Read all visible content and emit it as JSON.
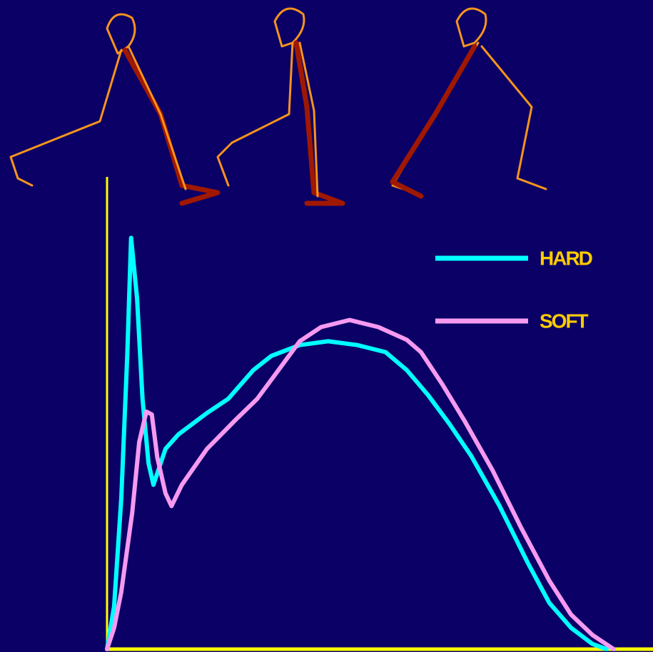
{
  "chart_data": {
    "type": "line",
    "xlim": [
      0,
      100
    ],
    "ylim": [
      0,
      100
    ],
    "series": [
      {
        "name": "HARD",
        "color": "#00ffff",
        "x": [
          0,
          1.3,
          2.6,
          3.7,
          4.4,
          5.5,
          6.5,
          7.6,
          8.5,
          9.4,
          10.7,
          13.1,
          18.3,
          22.2,
          26.8,
          30.1,
          35.3,
          40.5,
          45.8,
          51,
          54.9,
          58.8,
          62.7,
          66.7,
          71.9,
          77.1,
          81,
          85,
          88.9,
          91.5
        ],
        "values": [
          0,
          9.1,
          31.8,
          62.1,
          87.1,
          74.2,
          53,
          39.4,
          34.8,
          37.9,
          42.4,
          45.5,
          50,
          53,
          59.1,
          62.1,
          64.4,
          65.2,
          64.4,
          62.9,
          59.1,
          53.8,
          47.7,
          40.9,
          30.3,
          18.2,
          9.8,
          4.5,
          1.1,
          0
        ]
      },
      {
        "name": "SOFT",
        "color": "#f59af0",
        "x": [
          0,
          1.3,
          2.6,
          4.6,
          5.9,
          7.2,
          8.2,
          9.2,
          10.7,
          11.8,
          13.7,
          18.3,
          23.5,
          27.5,
          31.4,
          35.3,
          39.2,
          44.4,
          49.7,
          54.9,
          57.5,
          61.4,
          65.4,
          70.6,
          75.8,
          81,
          85,
          88.9,
          92.8
        ],
        "values": [
          0,
          4.5,
          12.1,
          28.8,
          43.9,
          50.3,
          49.7,
          40.6,
          33,
          30.3,
          34.8,
          42.4,
          48.5,
          53,
          59.1,
          65.2,
          68.2,
          69.7,
          68.2,
          65.5,
          62.9,
          56.1,
          48.5,
          37.9,
          25.8,
          14.5,
          7.3,
          3,
          0
        ]
      }
    ]
  }
}
